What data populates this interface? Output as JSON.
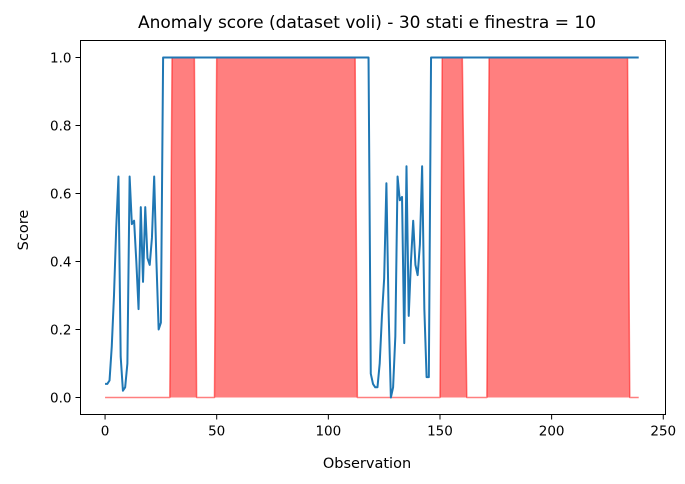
{
  "chart_data": {
    "type": "line",
    "title": "Anomaly score (dataset voli) - 30 stati e finestra = 10",
    "xlabel": "Observation",
    "ylabel": "Score",
    "xlim": [
      -11,
      251
    ],
    "ylim": [
      -0.05,
      1.05
    ],
    "xticks": [
      0,
      50,
      100,
      150,
      200,
      250
    ],
    "xtick_labels": [
      "0",
      "50",
      "100",
      "150",
      "200",
      "250"
    ],
    "yticks": [
      0.0,
      0.2,
      0.4,
      0.6,
      0.8,
      1.0
    ],
    "ytick_labels": [
      "0.0",
      "0.2",
      "0.4",
      "0.6",
      "0.8",
      "1.0"
    ],
    "grid": false,
    "legend": "none",
    "series": [
      {
        "color": "#1f77b4",
        "x": [
          0,
          1,
          2,
          3,
          4,
          5,
          6,
          7,
          8,
          9,
          10,
          11,
          12,
          13,
          14,
          15,
          16,
          17,
          18,
          19,
          20,
          21,
          22,
          23,
          24,
          25,
          26,
          27,
          118,
          119,
          120,
          121,
          122,
          123,
          124,
          125,
          126,
          127,
          128,
          129,
          130,
          131,
          132,
          133,
          134,
          135,
          136,
          137,
          138,
          139,
          140,
          141,
          142,
          143,
          144,
          145,
          146,
          147,
          148,
          239
        ],
        "y": [
          0.04,
          0.04,
          0.05,
          0.15,
          0.3,
          0.5,
          0.65,
          0.12,
          0.02,
          0.03,
          0.1,
          0.65,
          0.51,
          0.52,
          0.4,
          0.26,
          0.56,
          0.34,
          0.56,
          0.41,
          0.39,
          0.47,
          0.65,
          0.4,
          0.2,
          0.22,
          1.0,
          1.0,
          1.0,
          0.07,
          0.04,
          0.03,
          0.03,
          0.1,
          0.24,
          0.35,
          0.63,
          0.25,
          0.0,
          0.03,
          0.18,
          0.65,
          0.58,
          0.59,
          0.16,
          0.68,
          0.24,
          0.4,
          0.52,
          0.39,
          0.36,
          0.45,
          0.68,
          0.26,
          0.06,
          0.06,
          1.0,
          1.0,
          1.0,
          1.0
        ]
      },
      {
        "color": "#ff0000",
        "fill_opacity": 0.5,
        "x": [
          0,
          29,
          30,
          40,
          41,
          49,
          50,
          112,
          113,
          150,
          151,
          160,
          162,
          171,
          172,
          234,
          235,
          239
        ],
        "y": [
          0,
          0,
          1,
          1,
          0,
          0,
          1,
          1,
          0,
          0,
          1,
          1,
          0,
          0,
          1,
          1,
          0,
          0
        ]
      }
    ]
  }
}
